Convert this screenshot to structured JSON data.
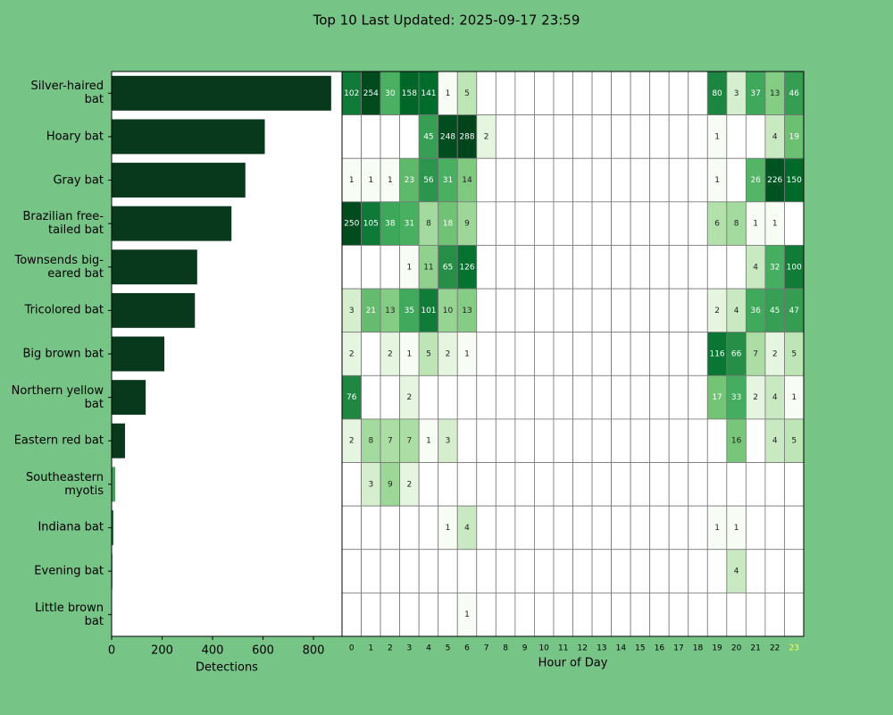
{
  "chart_data": [
    {
      "type": "barh",
      "title": "Top 10 Last Updated: 2025-09-17 23:59",
      "categories": [
        "Silver-haired\nbat",
        "Hoary bat",
        "Gray bat",
        "Brazilian free-\ntailed bat",
        "Townsends big-\neared bat",
        "Tricolored bat",
        "Big brown bat",
        "Northern yellow\nbat",
        "Eastern red bat",
        "Southeastern\nmyotis",
        "Indiana bat",
        "Evening bat",
        "Little brown\nbat"
      ],
      "values": [
        870,
        607,
        530,
        475,
        339,
        330,
        209,
        135,
        53,
        14,
        7,
        4,
        1
      ],
      "colors": [
        "#08391c",
        "#08391c",
        "#08391c",
        "#08391c",
        "#08391c",
        "#08391c",
        "#08391c",
        "#08391c",
        "#08391c",
        "#4a9e5c",
        "#2d6e3e",
        "#6fbf80",
        "#a9dca0"
      ],
      "xlim": [
        0,
        913
      ],
      "xticks": [
        0,
        200,
        400,
        600,
        800
      ],
      "xlabel": "Detections"
    },
    {
      "type": "heatmap",
      "xlabel": "Hour of Day",
      "columns": [
        0,
        1,
        2,
        3,
        4,
        5,
        6,
        7,
        8,
        9,
        10,
        11,
        12,
        13,
        14,
        15,
        16,
        17,
        18,
        19,
        20,
        21,
        22,
        23
      ],
      "highlight_column": 23,
      "highlight_color": "#ffff44",
      "colormap": "Greens",
      "color_norm": "log",
      "values": [
        [
          102,
          254,
          30,
          158,
          141,
          1,
          5,
          null,
          null,
          null,
          null,
          null,
          null,
          null,
          null,
          null,
          null,
          null,
          null,
          80,
          3,
          37,
          13,
          46
        ],
        [
          null,
          null,
          null,
          null,
          45,
          248,
          288,
          2,
          null,
          null,
          null,
          null,
          null,
          null,
          null,
          null,
          null,
          null,
          null,
          1,
          null,
          null,
          4,
          19
        ],
        [
          1,
          1,
          1,
          23,
          56,
          31,
          14,
          null,
          null,
          null,
          null,
          null,
          null,
          null,
          null,
          null,
          null,
          null,
          null,
          1,
          null,
          26,
          226,
          150
        ],
        [
          250,
          105,
          38,
          31,
          8,
          18,
          9,
          null,
          null,
          null,
          null,
          null,
          null,
          null,
          null,
          null,
          null,
          null,
          null,
          6,
          8,
          1,
          1,
          null
        ],
        [
          null,
          null,
          null,
          1,
          11,
          65,
          126,
          null,
          null,
          null,
          null,
          null,
          null,
          null,
          null,
          null,
          null,
          null,
          null,
          null,
          null,
          4,
          32,
          100
        ],
        [
          3,
          21,
          13,
          35,
          101,
          10,
          13,
          null,
          null,
          null,
          null,
          null,
          null,
          null,
          null,
          null,
          null,
          null,
          null,
          2,
          4,
          36,
          45,
          47
        ],
        [
          2,
          null,
          2,
          1,
          5,
          2,
          1,
          null,
          null,
          null,
          null,
          null,
          null,
          null,
          null,
          null,
          null,
          null,
          null,
          116,
          66,
          7,
          2,
          5
        ],
        [
          76,
          null,
          null,
          2,
          null,
          null,
          null,
          null,
          null,
          null,
          null,
          null,
          null,
          null,
          null,
          null,
          null,
          null,
          null,
          17,
          33,
          2,
          4,
          1
        ],
        [
          2,
          8,
          7,
          7,
          1,
          3,
          null,
          null,
          null,
          null,
          null,
          null,
          null,
          null,
          null,
          null,
          null,
          null,
          null,
          null,
          16,
          null,
          4,
          5
        ],
        [
          null,
          3,
          9,
          2,
          null,
          null,
          null,
          null,
          null,
          null,
          null,
          null,
          null,
          null,
          null,
          null,
          null,
          null,
          null,
          null,
          null,
          null,
          null,
          null
        ],
        [
          null,
          null,
          null,
          null,
          null,
          1,
          4,
          null,
          null,
          null,
          null,
          null,
          null,
          null,
          null,
          null,
          null,
          null,
          null,
          1,
          1,
          null,
          null,
          null
        ],
        [
          null,
          null,
          null,
          null,
          null,
          null,
          null,
          null,
          null,
          null,
          null,
          null,
          null,
          null,
          null,
          null,
          null,
          null,
          null,
          null,
          4,
          null,
          null,
          null
        ],
        [
          null,
          null,
          null,
          null,
          null,
          null,
          1,
          null,
          null,
          null,
          null,
          null,
          null,
          null,
          null,
          null,
          null,
          null,
          null,
          null,
          null,
          null,
          null,
          null
        ]
      ]
    }
  ]
}
